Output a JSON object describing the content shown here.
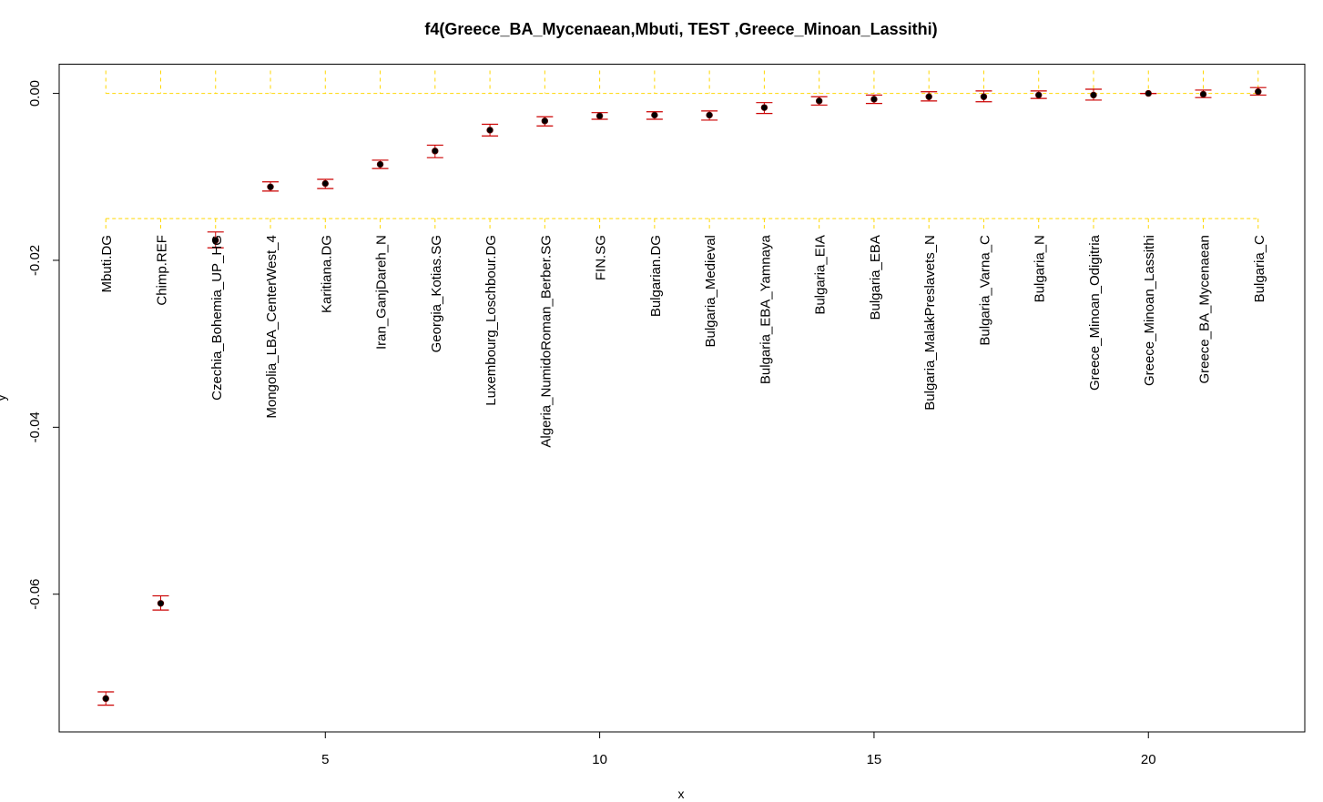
{
  "colors": {
    "errorbar": "#cc0000",
    "point": "#000000",
    "reference_line": "#ffd700",
    "axis": "#000000"
  },
  "chart_data": {
    "type": "scatter",
    "title": "f4(Greece_BA_Mycenaean,Mbuti, TEST ,Greece_Minoan_Lassithi)",
    "xlabel": "x",
    "ylabel": "y",
    "xlim": [
      0.15,
      22.85
    ],
    "ylim": [
      -0.0765,
      0.0035
    ],
    "x_ticks": [
      5,
      10,
      15,
      20
    ],
    "x_tick_labels": [
      "5",
      "10",
      "15",
      "20"
    ],
    "y_ticks": [
      0.0,
      -0.02,
      -0.04,
      -0.06
    ],
    "y_tick_labels": [
      "0.00",
      "-0.02",
      "-0.04",
      "-0.06"
    ],
    "grid": false,
    "legend": "none",
    "reference_lines": [
      0.0,
      -0.015
    ],
    "points": [
      {
        "x": 1,
        "label": "Mbuti.DG",
        "y": -0.0725,
        "lo": -0.0733,
        "hi": -0.0717
      },
      {
        "x": 2,
        "label": "Chimp.REF",
        "y": -0.0611,
        "lo": -0.0619,
        "hi": -0.0602
      },
      {
        "x": 3,
        "label": "Czechia_Bohemia_UP_HG",
        "y": -0.0176,
        "lo": -0.0185,
        "hi": -0.0166
      },
      {
        "x": 4,
        "label": "Mongolia_LBA_CenterWest_4",
        "y": -0.0112,
        "lo": -0.0117,
        "hi": -0.0106
      },
      {
        "x": 5,
        "label": "Karitiana.DG",
        "y": -0.0108,
        "lo": -0.0114,
        "hi": -0.0103
      },
      {
        "x": 6,
        "label": "Iran_GanjDareh_N",
        "y": -0.0085,
        "lo": -0.009,
        "hi": -0.008
      },
      {
        "x": 7,
        "label": "Georgia_Kotias.SG",
        "y": -0.0069,
        "lo": -0.0077,
        "hi": -0.0062
      },
      {
        "x": 8,
        "label": "Luxembourg_Loschbour.DG",
        "y": -0.0044,
        "lo": -0.0051,
        "hi": -0.0037
      },
      {
        "x": 9,
        "label": "Algeria_NumidoRoman_Berber.SG",
        "y": -0.0033,
        "lo": -0.0039,
        "hi": -0.0028
      },
      {
        "x": 10,
        "label": "FIN.SG",
        "y": -0.0027,
        "lo": -0.0031,
        "hi": -0.0023
      },
      {
        "x": 11,
        "label": "Bulgarian.DG",
        "y": -0.0026,
        "lo": -0.0031,
        "hi": -0.0022
      },
      {
        "x": 12,
        "label": "Bulgaria_Medieval",
        "y": -0.0026,
        "lo": -0.0032,
        "hi": -0.0021
      },
      {
        "x": 13,
        "label": "Bulgaria_EBA_Yamnaya",
        "y": -0.0017,
        "lo": -0.0024,
        "hi": -0.0011
      },
      {
        "x": 14,
        "label": "Bulgaria_EIA",
        "y": -0.0009,
        "lo": -0.0014,
        "hi": -0.0004
      },
      {
        "x": 15,
        "label": "Bulgaria_EBA",
        "y": -0.0007,
        "lo": -0.0012,
        "hi": -0.0002
      },
      {
        "x": 16,
        "label": "Bulgaria_MalakPreslavets_N",
        "y": -0.0004,
        "lo": -0.0009,
        "hi": 0.0002
      },
      {
        "x": 17,
        "label": "Bulgaria_Varna_C",
        "y": -0.0004,
        "lo": -0.001,
        "hi": 0.0003
      },
      {
        "x": 18,
        "label": "Bulgaria_N",
        "y": -0.0002,
        "lo": -0.0006,
        "hi": 0.0003
      },
      {
        "x": 19,
        "label": "Greece_Minoan_Odigitria",
        "y": -0.0002,
        "lo": -0.0008,
        "hi": 0.0005
      },
      {
        "x": 20,
        "label": "Greece_Minoan_Lassithi",
        "y": 0.0,
        "lo": 0.0,
        "hi": 0.0
      },
      {
        "x": 21,
        "label": "Greece_BA_Mycenaean",
        "y": -0.0001,
        "lo": -0.0005,
        "hi": 0.0004
      },
      {
        "x": 22,
        "label": "Bulgaria_C",
        "y": 0.0002,
        "lo": -0.0002,
        "hi": 0.0007
      }
    ]
  }
}
